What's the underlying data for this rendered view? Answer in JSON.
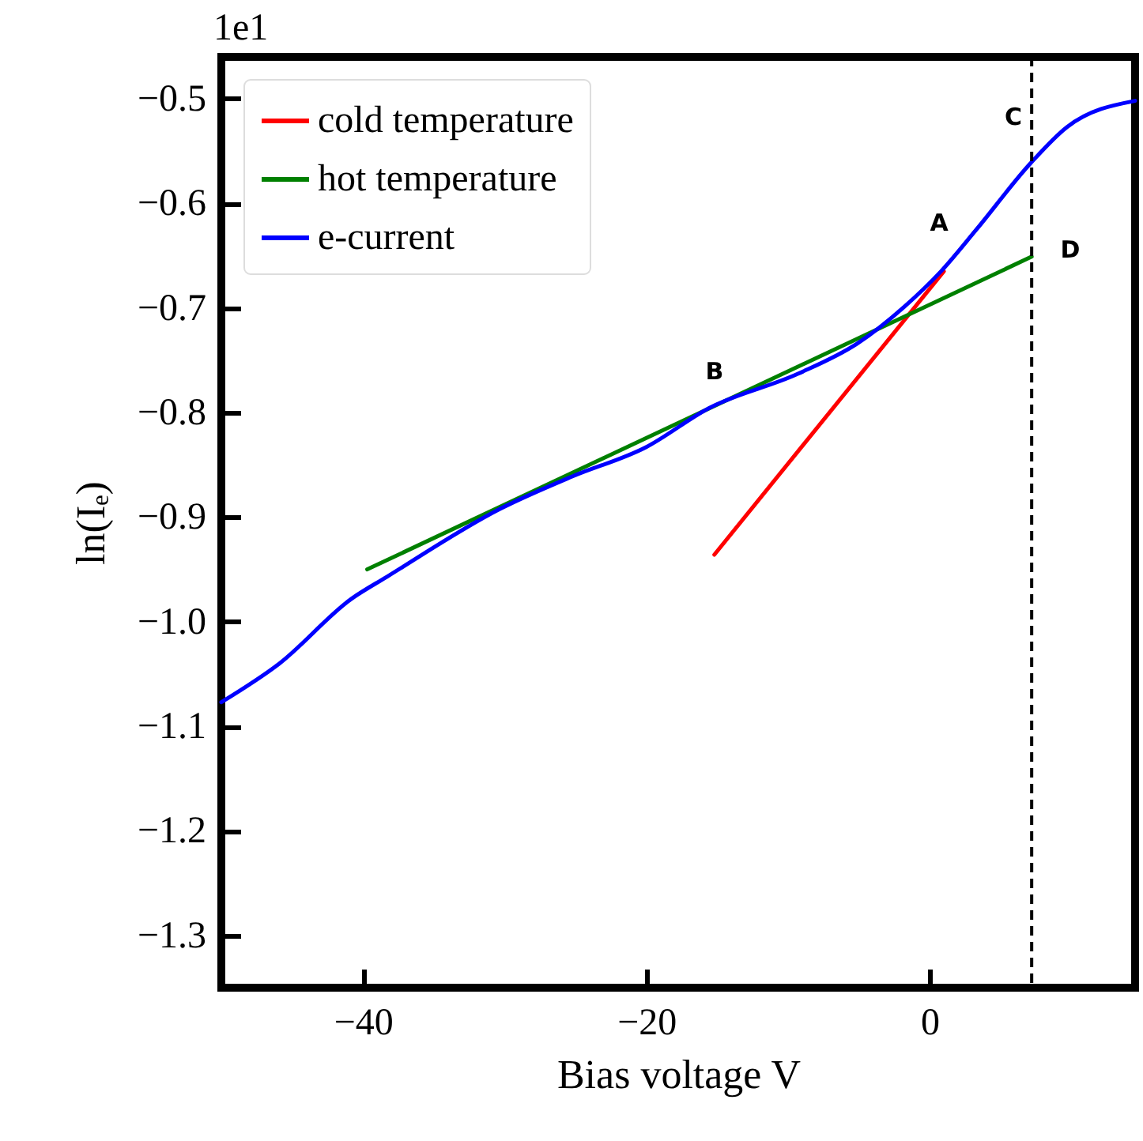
{
  "chart_data": {
    "type": "line",
    "xlabel": "Bias voltage V",
    "ylabel": "ln(Iₑ)",
    "xlim": [
      -50,
      14.5
    ],
    "ylim": [
      -1.35,
      -0.46
    ],
    "xticks": [
      -40,
      -20,
      0
    ],
    "yticks": [
      -1.3,
      -1.2,
      -1.1,
      {
        "value": -1,
        "label": "−1.0"
      },
      -0.9,
      -0.8,
      -0.7,
      -0.6,
      -0.5
    ],
    "legend": "top left",
    "grid": false,
    "series": [
      {
        "name": "cold temperature",
        "color": "#ff0000",
        "x": [
          -15.2,
          1.0
        ],
        "values": [
          -0.936,
          -0.665
        ]
      },
      {
        "name": "hot temperature",
        "color": "#008000",
        "x": [
          -39.7,
          7.2
        ],
        "values": [
          -0.95,
          -0.651
        ]
      },
      {
        "name": "e-current",
        "color": "#0000ff",
        "x": [
          -50,
          -45.9,
          -40.8,
          -38.3,
          -30.3,
          -25.2,
          -20,
          -15.6,
          -9.3,
          -5.1,
          -1.8,
          0.8,
          3.3,
          7.1,
          9.7,
          14.5
        ],
        "values": [
          -1.077,
          -1.04,
          -0.978,
          -0.957,
          -0.892,
          -0.861,
          -0.833,
          -0.796,
          -0.763,
          -0.734,
          -0.699,
          -0.665,
          -0.625,
          -0.562,
          -0.527,
          -0.502
        ]
      }
    ],
    "ref_lines": [
      {
        "axis": "x",
        "value": 7.2,
        "color": "#000000",
        "line_style": "dashed"
      }
    ],
    "annotations": [
      "1e1",
      "A",
      "B",
      "C",
      "D"
    ]
  }
}
